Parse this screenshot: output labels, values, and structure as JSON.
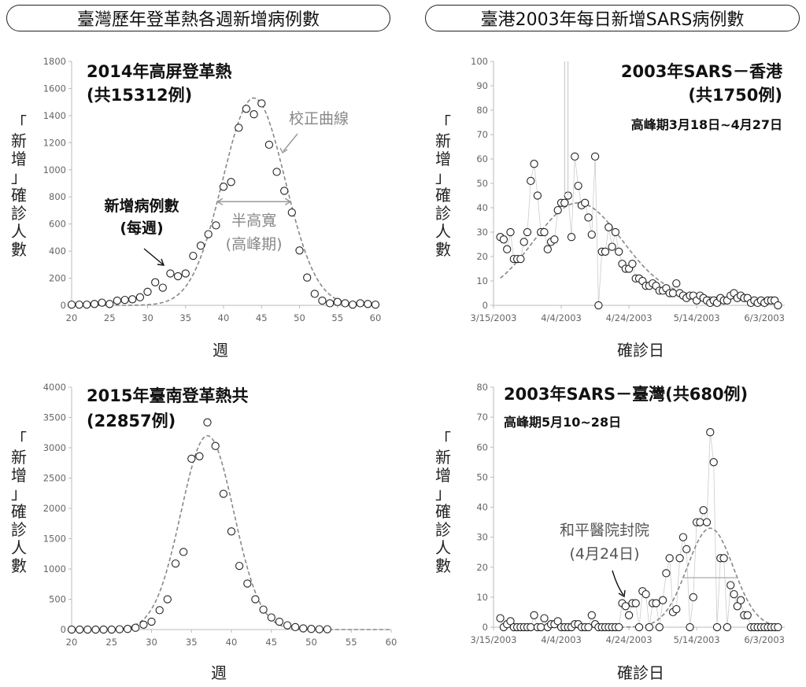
{
  "headers": {
    "left": "臺灣歷年登革熱各週新增病例數",
    "right": "臺港2003年每日新增SARS病例數"
  },
  "colors": {
    "points": "#222222",
    "curve": "#888888",
    "axis": "#bbbbbb",
    "annotation": "#999999"
  },
  "chart_data": [
    {
      "id": "dengue2014",
      "type": "scatter",
      "title_lines": [
        "2014年高屏登革熱",
        "(共15312例)"
      ],
      "xlabel": "週",
      "ylabel": "「新增」確診人數",
      "xlim": [
        20,
        60
      ],
      "ylim": [
        0,
        1800
      ],
      "xticks": [
        "20",
        "25",
        "30",
        "35",
        "40",
        "45",
        "50",
        "55",
        "60"
      ],
      "yticks": [
        "0",
        "200",
        "400",
        "600",
        "800",
        "1000",
        "1200",
        "1400",
        "1600",
        "1800"
      ],
      "series": [
        {
          "x": [
            20,
            21,
            22,
            23,
            24,
            25,
            26,
            27,
            28,
            29,
            30,
            31,
            32,
            33,
            34,
            35,
            36,
            37,
            38,
            39,
            40,
            41,
            42,
            43,
            44,
            45,
            46,
            47,
            48,
            49,
            50,
            51,
            52,
            53,
            54,
            55,
            56,
            57,
            58,
            59,
            60
          ],
          "y": [
            5,
            5,
            5,
            10,
            20,
            10,
            35,
            40,
            45,
            60,
            100,
            170,
            130,
            235,
            215,
            235,
            365,
            440,
            525,
            590,
            875,
            910,
            1310,
            1450,
            1410,
            1490,
            1185,
            985,
            845,
            685,
            405,
            205,
            85,
            35,
            15,
            25,
            15,
            5,
            15,
            10,
            5
          ]
        }
      ],
      "fit_curve": {
        "label": "校正曲線",
        "peak": 1530,
        "mean": 44,
        "sd": 4.1
      },
      "annotations": {
        "points_label": [
          "新增病例數",
          "(每週)"
        ],
        "fwhm_label": [
          "半高寬",
          "(高峰期)"
        ]
      }
    },
    {
      "id": "dengue2015",
      "type": "scatter",
      "title_lines": [
        "2015年臺南登革熱共",
        "(22857例)"
      ],
      "xlabel": "週",
      "ylabel": "「新增」確診人數",
      "xlim": [
        20,
        60
      ],
      "ylim": [
        0,
        4000
      ],
      "xticks": [
        "20",
        "25",
        "30",
        "35",
        "40",
        "45",
        "50",
        "55",
        "60"
      ],
      "yticks": [
        "0",
        "500",
        "1000",
        "1500",
        "2000",
        "2500",
        "3000",
        "3500",
        "4000"
      ],
      "series": [
        {
          "x": [
            20,
            21,
            22,
            23,
            24,
            25,
            26,
            27,
            28,
            29,
            30,
            31,
            32,
            33,
            34,
            35,
            36,
            37,
            38,
            39,
            40,
            41,
            42,
            43,
            44,
            45,
            46,
            47,
            48,
            49,
            50,
            51,
            52
          ],
          "y": [
            0,
            0,
            0,
            0,
            0,
            0,
            5,
            10,
            30,
            80,
            130,
            320,
            500,
            1090,
            1280,
            2820,
            2860,
            3420,
            3030,
            2240,
            1620,
            1050,
            760,
            500,
            330,
            200,
            130,
            70,
            40,
            20,
            10,
            5,
            5
          ]
        }
      ],
      "fit_curve": {
        "peak": 3200,
        "mean": 37,
        "sd": 3.3
      }
    },
    {
      "id": "sars_hk",
      "type": "scatter",
      "title_lines": [
        "2003年SARS－香港",
        "(共1750例)"
      ],
      "subtitle": "高峰期3月18日~4月27日",
      "xlabel": "確診日",
      "ylabel": "「新增」確診人數",
      "ylim": [
        0,
        100
      ],
      "xlim": [
        0,
        86
      ],
      "xticks": [
        "3/15/2003",
        "4/4/2003",
        "4/24/2003",
        "5/14/2003",
        "6/3/2003"
      ],
      "xtick_days": [
        0,
        20,
        40,
        60,
        80
      ],
      "yticks": [
        "0",
        "10",
        "20",
        "30",
        "40",
        "50",
        "60",
        "70",
        "80",
        "90",
        "100"
      ],
      "series": [
        {
          "x": [
            2,
            3,
            4,
            5,
            6,
            7,
            8,
            9,
            10,
            11,
            12,
            13,
            14,
            15,
            16,
            17,
            18,
            19,
            20,
            21,
            22,
            23,
            24,
            25,
            26,
            27,
            28,
            29,
            30,
            31,
            32,
            33,
            34,
            35,
            36,
            37,
            38,
            39,
            40,
            41,
            42,
            43,
            44,
            45,
            46,
            47,
            48,
            49,
            50,
            51,
            52,
            53,
            54,
            55,
            56,
            57,
            58,
            59,
            60,
            61,
            62,
            63,
            64,
            65,
            66,
            67,
            68,
            69,
            70,
            71,
            72,
            73,
            74,
            75,
            76,
            77,
            78,
            79,
            80,
            81,
            82,
            83,
            84
          ],
          "y": [
            28,
            27,
            23,
            30,
            19,
            19,
            19,
            26,
            30,
            51,
            58,
            45,
            30,
            30,
            23,
            26,
            27,
            39,
            42,
            42,
            45,
            28,
            61,
            49,
            41,
            42,
            36,
            29,
            61,
            0,
            22,
            22,
            32,
            24,
            30,
            22,
            17,
            15,
            15,
            17,
            11,
            11,
            10,
            8,
            8,
            9,
            8,
            6,
            6,
            7,
            5,
            5,
            9,
            5,
            4,
            3,
            4,
            4,
            2,
            4,
            3,
            2,
            1,
            2,
            1,
            3,
            2,
            2,
            4,
            5,
            3,
            4,
            3,
            3,
            1,
            2,
            1,
            2,
            1,
            2,
            2,
            2,
            0
          ]
        },
        {
          "x": [
            21,
            22
          ],
          "y": [
            100,
            100
          ]
        }
      ],
      "fit_curve": {
        "peak": 39,
        "mean": 25,
        "sd": 13,
        "base": 3,
        "start": 2,
        "end": 84
      }
    },
    {
      "id": "sars_tw",
      "type": "scatter",
      "title_lines": [
        "2003年SARS－臺灣(共680例)"
      ],
      "subtitle": "高峰期5月10~28日",
      "xlabel": "確診日",
      "ylabel": "「新增」確診人數",
      "ylim": [
        0,
        80
      ],
      "xlim": [
        0,
        86
      ],
      "xticks": [
        "3/15/2003",
        "4/4/2003",
        "4/24/2003",
        "5/14/2003",
        "6/3/2003"
      ],
      "xtick_days": [
        0,
        20,
        40,
        60,
        80
      ],
      "yticks": [
        "0",
        "10",
        "20",
        "30",
        "40",
        "50",
        "60",
        "70",
        "80"
      ],
      "series": [
        {
          "x": [
            2,
            3,
            4,
            5,
            6,
            7,
            8,
            9,
            10,
            11,
            12,
            13,
            14,
            15,
            16,
            17,
            18,
            19,
            20,
            21,
            22,
            23,
            24,
            25,
            26,
            27,
            28,
            29,
            30,
            31,
            32,
            33,
            34,
            35,
            36,
            37,
            38,
            39,
            40,
            41,
            42,
            43,
            44,
            45,
            46,
            47,
            48,
            49,
            50,
            51,
            52,
            53,
            54,
            55,
            56,
            57,
            58,
            59,
            60,
            61,
            62,
            63,
            64,
            65,
            66,
            67,
            68,
            69,
            70,
            71,
            72,
            73,
            74,
            75,
            76,
            77,
            78,
            79,
            80,
            81,
            82,
            83,
            84
          ],
          "y": [
            3,
            0,
            1,
            2,
            0,
            0,
            0,
            0,
            0,
            0,
            4,
            0,
            0,
            3,
            0,
            1,
            1,
            2,
            0,
            0,
            0,
            0,
            1,
            1,
            0,
            0,
            0,
            4,
            1,
            0,
            0,
            0,
            0,
            0,
            0,
            0,
            8,
            7,
            4,
            8,
            8,
            0,
            12,
            11,
            0,
            8,
            8,
            0,
            9,
            18,
            23,
            5,
            6,
            23,
            30,
            26,
            0,
            10,
            35,
            35,
            39,
            35,
            65,
            55,
            0,
            23,
            23,
            0,
            14,
            11,
            7,
            9,
            4,
            4,
            0,
            0,
            0,
            0,
            0,
            0,
            0,
            0,
            0
          ]
        }
      ],
      "fit_curve": {
        "peak": 33,
        "mean": 64,
        "sd": 6.8,
        "base": 0,
        "start": 30,
        "end": 84
      },
      "annotations": {
        "closure_label": [
          "和平醫院封院",
          "(4月24日)"
        ]
      }
    }
  ]
}
